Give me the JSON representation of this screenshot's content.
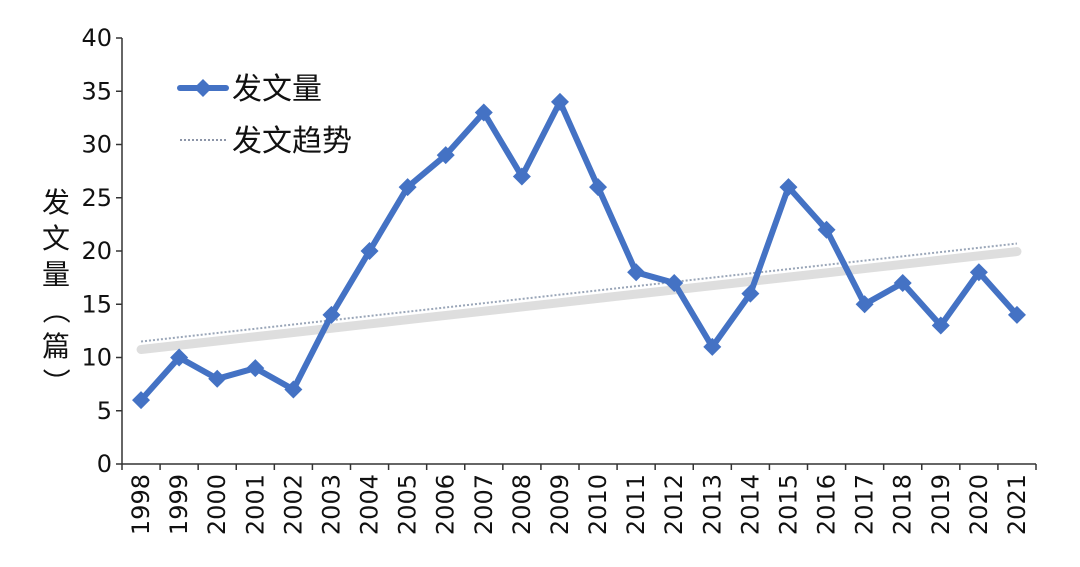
{
  "chart_data": {
    "type": "line",
    "title": "",
    "xlabel": "",
    "ylabel": "发文量（篇）",
    "ylim": [
      0,
      40
    ],
    "yticks": [
      0,
      5,
      10,
      15,
      20,
      25,
      30,
      35,
      40
    ],
    "grid": false,
    "legend_position": "top-left",
    "categories": [
      "1998",
      "1999",
      "2000",
      "2001",
      "2002",
      "2003",
      "2004",
      "2005",
      "2006",
      "2007",
      "2008",
      "2009",
      "2010",
      "2011",
      "2012",
      "2013",
      "2014",
      "2015",
      "2016",
      "2017",
      "2018",
      "2019",
      "2020",
      "2021"
    ],
    "series": [
      {
        "name": "发文量",
        "style": "line-diamond",
        "color": "#4472c4",
        "values": [
          6,
          10,
          8,
          9,
          7,
          14,
          20,
          26,
          29,
          33,
          27,
          34,
          26,
          18,
          17,
          11,
          16,
          26,
          22,
          15,
          17,
          13,
          18,
          14
        ]
      },
      {
        "name": "发文趋势",
        "style": "dotted-trend",
        "color": "#9aa6b8",
        "values": [
          11.5,
          11.9,
          12.3,
          12.7,
          13.1,
          13.5,
          13.9,
          14.3,
          14.7,
          15.1,
          15.5,
          15.9,
          16.3,
          16.7,
          17.1,
          17.5,
          17.9,
          18.3,
          18.7,
          19.1,
          19.5,
          19.9,
          20.3,
          20.7
        ]
      }
    ]
  }
}
